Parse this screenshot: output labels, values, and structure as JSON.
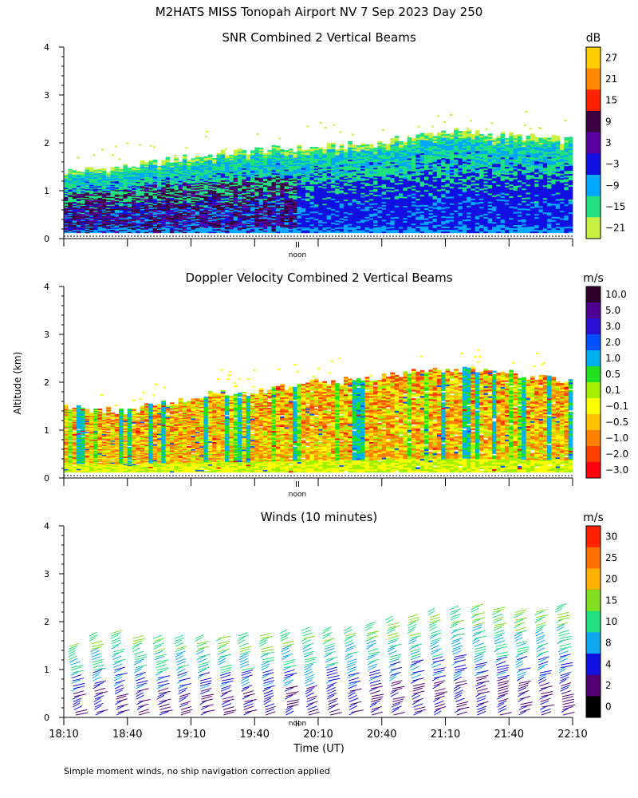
{
  "figure": {
    "title": "M2HATS MISS Tonopah Airport NV   7 Sep 2023 Day 250",
    "ylabel": "Altitude (km)",
    "xlabel": "Time (UT)",
    "footnote": "Simple moment winds, no ship navigation correction applied",
    "noon_label": "noon",
    "xticks": [
      "18:10",
      "18:40",
      "19:10",
      "19:40",
      "20:10",
      "20:40",
      "21:10",
      "21:40",
      "22:10"
    ],
    "yticks": [
      "0",
      "1",
      "2",
      "3",
      "4"
    ]
  },
  "chart_data": [
    {
      "type": "heatmap",
      "title": "SNR Combined 2 Vertical Beams",
      "colorbar_unit": "dB",
      "colorbar_labels": [
        "27",
        "21",
        "15",
        "9",
        "3",
        "−3",
        "−9",
        "−15",
        "−21"
      ],
      "colorbar_colors": [
        "#ffcc00",
        "#ff8800",
        "#ff2200",
        "#3a0040",
        "#5a00a0",
        "#1010e0",
        "#00a8ff",
        "#20e080",
        "#c8f040"
      ],
      "xlim": [
        "18:10",
        "22:10"
      ],
      "ylim": [
        0,
        4
      ],
      "echo_top_km": [
        {
          "time": "18:10",
          "top": 1.4
        },
        {
          "time": "18:40",
          "top": 1.5
        },
        {
          "time": "19:10",
          "top": 1.7
        },
        {
          "time": "19:40",
          "top": 1.85
        },
        {
          "time": "20:10",
          "top": 1.9
        },
        {
          "time": "20:40",
          "top": 2.0
        },
        {
          "time": "21:10",
          "top": 2.25
        },
        {
          "time": "21:40",
          "top": 2.15
        },
        {
          "time": "22:10",
          "top": 2.05
        }
      ]
    },
    {
      "type": "heatmap",
      "title": "Doppler Velocity Combined 2 Vertical Beams",
      "colorbar_unit": "m/s",
      "colorbar_labels": [
        "10.0",
        "5.0",
        "3.0",
        "2.0",
        "1.0",
        "0.5",
        "0.1",
        "−0.1",
        "−0.5",
        "−1.0",
        "−2.0",
        "−3.0"
      ],
      "colorbar_colors": [
        "#30002a",
        "#500090",
        "#2a10d0",
        "#0050ff",
        "#00b0f0",
        "#20e020",
        "#a0f000",
        "#ffff00",
        "#ffc000",
        "#ff8000",
        "#ff4000",
        "#ff0010"
      ],
      "xlim": [
        "18:10",
        "22:10"
      ],
      "ylim": [
        0,
        4
      ],
      "echo_top_km": [
        {
          "time": "18:10",
          "top": 1.45
        },
        {
          "time": "18:40",
          "top": 1.4
        },
        {
          "time": "19:10",
          "top": 1.7
        },
        {
          "time": "19:40",
          "top": 1.8
        },
        {
          "time": "20:10",
          "top": 2.0
        },
        {
          "time": "20:40",
          "top": 2.1
        },
        {
          "time": "21:10",
          "top": 2.3
        },
        {
          "time": "21:40",
          "top": 2.2
        },
        {
          "time": "22:10",
          "top": 2.0
        }
      ]
    },
    {
      "type": "scatter",
      "title": "Winds (10 minutes)",
      "colorbar_unit": "m/s",
      "colorbar_labels": [
        "30",
        "25",
        "20",
        "15",
        "10",
        "8",
        "4",
        "2",
        "0"
      ],
      "colorbar_colors": [
        "#ff2000",
        "#ff7000",
        "#ffb000",
        "#80e020",
        "#20e080",
        "#10a8f0",
        "#1010e0",
        "#500070",
        "#000000"
      ],
      "xlim": [
        "18:10",
        "22:10"
      ],
      "ylim": [
        0,
        4
      ],
      "profile_times": [
        "18:10",
        "18:20",
        "18:30",
        "18:40",
        "18:50",
        "19:00",
        "19:10",
        "19:20",
        "19:30",
        "19:40",
        "19:50",
        "20:00",
        "20:10",
        "20:20",
        "20:30",
        "20:40",
        "20:50",
        "21:00",
        "21:10",
        "21:20",
        "21:30",
        "21:40",
        "21:50",
        "22:00"
      ],
      "profile_tops_km": [
        1.5,
        1.75,
        1.8,
        1.65,
        1.65,
        1.65,
        1.65,
        1.65,
        1.7,
        1.7,
        1.8,
        1.85,
        1.85,
        1.85,
        1.95,
        2.05,
        2.1,
        2.2,
        2.3,
        2.35,
        2.25,
        2.2,
        2.2,
        2.35
      ]
    }
  ]
}
